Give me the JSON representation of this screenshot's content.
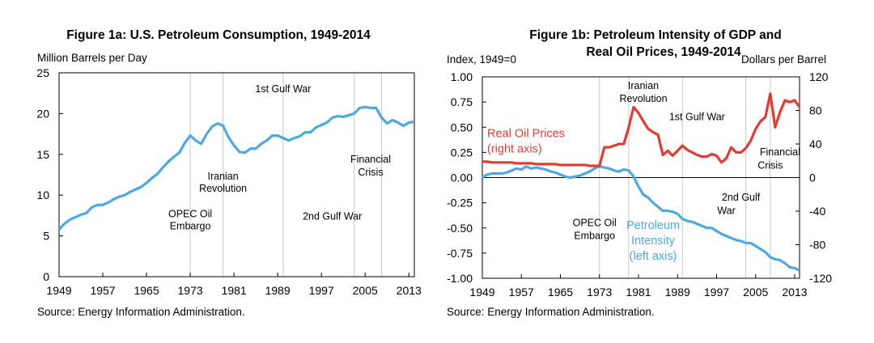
{
  "chart_data": [
    {
      "type": "line",
      "title": "Figure 1a: U.S. Petroleum Consumption, 1949-2014",
      "ylabel": "Million Barrels per Day",
      "xlim": [
        1949,
        2014
      ],
      "ylim": [
        0,
        25
      ],
      "x_ticks": [
        1949,
        1957,
        1965,
        1973,
        1981,
        1989,
        1997,
        2005,
        2013
      ],
      "y_ticks": [
        0,
        5,
        10,
        15,
        20,
        25
      ],
      "grid": false,
      "series": [
        {
          "color": "#4ea9e2",
          "x": [
            1949,
            1950,
            1951,
            1952,
            1953,
            1954,
            1955,
            1956,
            1957,
            1958,
            1959,
            1960,
            1961,
            1962,
            1963,
            1964,
            1965,
            1966,
            1967,
            1968,
            1969,
            1970,
            1971,
            1972,
            1973,
            1974,
            1975,
            1976,
            1977,
            1978,
            1979,
            1980,
            1981,
            1982,
            1983,
            1984,
            1985,
            1986,
            1987,
            1988,
            1989,
            1990,
            1991,
            1992,
            1993,
            1994,
            1995,
            1996,
            1997,
            1998,
            1999,
            2000,
            2001,
            2002,
            2003,
            2004,
            2005,
            2006,
            2007,
            2008,
            2009,
            2010,
            2011,
            2012,
            2013,
            2014
          ],
          "values": [
            5.8,
            6.5,
            7.0,
            7.3,
            7.6,
            7.8,
            8.5,
            8.8,
            8.8,
            9.1,
            9.5,
            9.8,
            10.0,
            10.4,
            10.7,
            11.0,
            11.5,
            12.1,
            12.6,
            13.4,
            14.1,
            14.7,
            15.2,
            16.4,
            17.3,
            16.7,
            16.3,
            17.5,
            18.4,
            18.8,
            18.5,
            17.1,
            16.1,
            15.3,
            15.2,
            15.7,
            15.7,
            16.3,
            16.7,
            17.3,
            17.3,
            17.0,
            16.7,
            17.0,
            17.2,
            17.7,
            17.7,
            18.3,
            18.6,
            18.9,
            19.5,
            19.7,
            19.6,
            19.8,
            20.0,
            20.7,
            20.8,
            20.7,
            20.7,
            19.5,
            18.8,
            19.2,
            18.9,
            18.5,
            18.9,
            19.0
          ]
        }
      ],
      "event_lines": [
        1973,
        1979,
        1990,
        2003,
        2008
      ],
      "annotations": [
        {
          "text": "OPEC Oil",
          "x": 1973,
          "y": 7.3
        },
        {
          "text": "Embargo",
          "x": 1973,
          "y": 5.8
        },
        {
          "text": "Iranian",
          "x": 1979,
          "y": 11.9
        },
        {
          "text": "Revolution",
          "x": 1979,
          "y": 10.4
        },
        {
          "text": "1st Gulf War",
          "x": 1990,
          "y": 22.6
        },
        {
          "text": "2nd Gulf War",
          "x": 1999,
          "y": 7.0
        },
        {
          "text": "Financial",
          "x": 2006,
          "y": 14.0
        },
        {
          "text": "Crisis",
          "x": 2006,
          "y": 12.4
        }
      ],
      "source": "Source: Energy Information Administration."
    },
    {
      "type": "line",
      "title_lines": [
        "Figure 1b: Petroleum Intensity of GDP and",
        "Real Oil Prices, 1949-2014"
      ],
      "ylabel_left": "Index, 1949=0",
      "ylabel_right": "Dollars per Barrel",
      "xlim": [
        1949,
        2014
      ],
      "ylim_left": [
        -1.0,
        1.0
      ],
      "ylim_right": [
        -120,
        120
      ],
      "x_ticks": [
        1949,
        1957,
        1965,
        1973,
        1981,
        1989,
        1997,
        2005,
        2013
      ],
      "y_ticks_left": [
        "1.00",
        "0.75",
        "0.50",
        "0.25",
        "0.00",
        "-0.25",
        "-0.50",
        "-0.75",
        "-1.00"
      ],
      "y_ticks_right": [
        "120",
        "80",
        "40",
        "0",
        "-40",
        "-80",
        "-120"
      ],
      "grid": false,
      "series": [
        {
          "axis": "left",
          "color": "#4ea9e2",
          "x": [
            1949,
            1950,
            1951,
            1952,
            1953,
            1954,
            1955,
            1956,
            1957,
            1958,
            1959,
            1960,
            1961,
            1962,
            1963,
            1964,
            1965,
            1966,
            1967,
            1968,
            1969,
            1970,
            1971,
            1972,
            1973,
            1974,
            1975,
            1976,
            1977,
            1978,
            1979,
            1980,
            1981,
            1982,
            1983,
            1984,
            1985,
            1986,
            1987,
            1988,
            1989,
            1990,
            1991,
            1992,
            1993,
            1994,
            1995,
            1996,
            1997,
            1998,
            1999,
            2000,
            2001,
            2002,
            2003,
            2004,
            2005,
            2006,
            2007,
            2008,
            2009,
            2010,
            2011,
            2012,
            2013,
            2014
          ],
          "values": [
            0.0,
            0.03,
            0.04,
            0.04,
            0.04,
            0.05,
            0.07,
            0.09,
            0.08,
            0.11,
            0.09,
            0.1,
            0.09,
            0.08,
            0.06,
            0.05,
            0.03,
            0.01,
            0.0,
            0.01,
            0.02,
            0.04,
            0.06,
            0.09,
            0.11,
            0.1,
            0.09,
            0.07,
            0.06,
            0.08,
            0.07,
            0.01,
            -0.09,
            -0.17,
            -0.2,
            -0.25,
            -0.29,
            -0.33,
            -0.33,
            -0.34,
            -0.36,
            -0.41,
            -0.43,
            -0.44,
            -0.46,
            -0.48,
            -0.5,
            -0.5,
            -0.53,
            -0.56,
            -0.58,
            -0.6,
            -0.62,
            -0.63,
            -0.65,
            -0.65,
            -0.68,
            -0.71,
            -0.74,
            -0.79,
            -0.81,
            -0.82,
            -0.85,
            -0.89,
            -0.9,
            -0.92
          ]
        },
        {
          "axis": "right",
          "color": "#e03c31",
          "x": [
            1949,
            1950,
            1951,
            1952,
            1953,
            1954,
            1955,
            1956,
            1957,
            1958,
            1959,
            1960,
            1961,
            1962,
            1963,
            1964,
            1965,
            1966,
            1967,
            1968,
            1969,
            1970,
            1971,
            1972,
            1973,
            1974,
            1975,
            1976,
            1977,
            1978,
            1979,
            1980,
            1981,
            1982,
            1983,
            1984,
            1985,
            1986,
            1987,
            1988,
            1989,
            1990,
            1991,
            1992,
            1993,
            1994,
            1995,
            1996,
            1997,
            1998,
            1999,
            2000,
            2001,
            2002,
            2003,
            2004,
            2005,
            2006,
            2007,
            2008,
            2009,
            2010,
            2011,
            2012,
            2013,
            2014
          ],
          "values": [
            19,
            19,
            18,
            18,
            18,
            18,
            18,
            17,
            17,
            17,
            17,
            16,
            16,
            16,
            16,
            16,
            15,
            15,
            15,
            15,
            15,
            15,
            14,
            14,
            14,
            36,
            36,
            38,
            40,
            40,
            60,
            84,
            77,
            67,
            58,
            54,
            51,
            27,
            32,
            26,
            32,
            38,
            33,
            30,
            27,
            25,
            25,
            28,
            26,
            18,
            23,
            36,
            30,
            30,
            35,
            44,
            58,
            67,
            72,
            100,
            60,
            78,
            92,
            90,
            92,
            84
          ],
          "label_lines": [
            "Real Oil Prices",
            "(right axis)"
          ],
          "label_pos": {
            "x": 1950,
            "y_left": 0.4
          }
        }
      ],
      "left_series_label_lines": [
        "Petroleum",
        "Intensity",
        "(left axis)"
      ],
      "event_lines": [
        1973,
        1979,
        1990,
        2003,
        2008
      ],
      "annotations": [
        {
          "text": "OPEC Oil",
          "x": 1972,
          "y": -0.48
        },
        {
          "text": "Embargo",
          "x": 1972,
          "y": -0.61
        },
        {
          "text": "Iranian",
          "x": 1982,
          "y": 0.88
        },
        {
          "text": "Revolution",
          "x": 1982,
          "y": 0.75
        },
        {
          "text": "1st Gulf War",
          "x": 1993,
          "y": 0.57
        },
        {
          "text": "2nd Gulf",
          "x": 2002,
          "y": -0.23
        },
        {
          "text": "War",
          "x": 1999,
          "y": -0.36
        },
        {
          "text": "Financial",
          "x": 2010,
          "y": 0.22
        },
        {
          "text": "Crisis",
          "x": 2008,
          "y": 0.09
        }
      ],
      "source": "Source: Energy Information Administration."
    }
  ]
}
